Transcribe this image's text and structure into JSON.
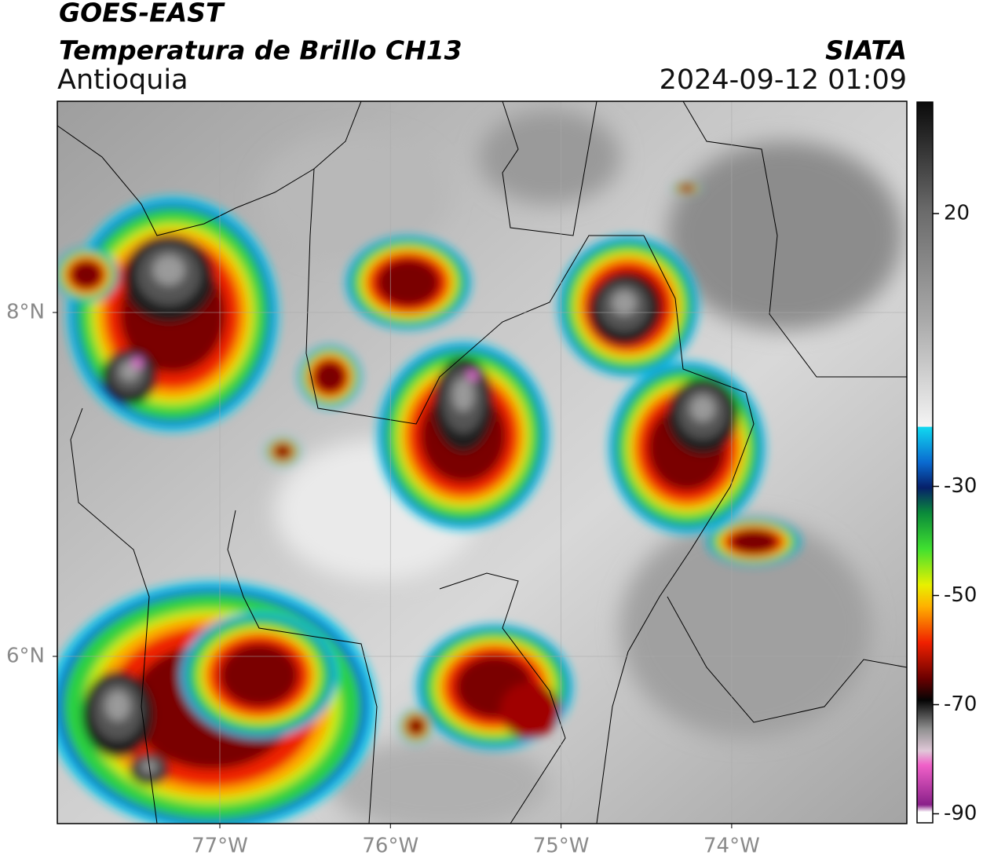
{
  "header": {
    "satellite": "GOES-EAST",
    "product": "Temperatura de Brillo CH13",
    "region": "Antioquia",
    "source": "SIATA",
    "datetime": "2024-09-12 01:09"
  },
  "map": {
    "lon_ticks": [
      {
        "value": -77,
        "label": "77°W"
      },
      {
        "value": -76,
        "label": "76°W"
      },
      {
        "value": -75,
        "label": "75°W"
      },
      {
        "value": -74,
        "label": "74°W"
      }
    ],
    "lat_ticks": [
      {
        "value": 8,
        "label": "8°N"
      },
      {
        "value": 6,
        "label": "6°N"
      }
    ]
  },
  "colorbar": {
    "ticks": [
      20,
      -30,
      -50,
      -70,
      -90
    ]
  }
}
